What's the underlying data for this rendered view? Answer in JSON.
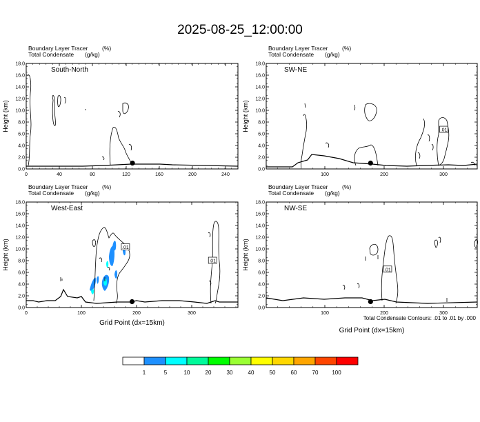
{
  "figure_title": "2025-08-25_12:00:00",
  "footnote": "Total Condensate Contours: .01 to .01 by .000",
  "chart_data": [
    {
      "type": "contour",
      "panel_label": "South-North",
      "header_left": [
        "Boundary Layer Tracer",
        "Total Condensate"
      ],
      "header_right": [
        "(%)",
        "(g/kg)"
      ],
      "ylabel": "Height (km)",
      "xlabel": "",
      "xlim": [
        0,
        253
      ],
      "ylim": [
        0,
        18
      ],
      "xticks": [
        "0",
        "40",
        "80",
        "120",
        "160",
        "200",
        "240"
      ],
      "yticks": [
        "0.0",
        "2.0",
        "4.0",
        "6.0",
        "8.0",
        "10.0",
        "12.0",
        "14.0",
        "16.0",
        "18.0"
      ],
      "marker": {
        "x": 127,
        "y": 1.0
      },
      "contour_labels": []
    },
    {
      "type": "contour",
      "panel_label": "SW-NE",
      "header_left": [
        "Boundary Layer Tracer",
        "Total Condensate"
      ],
      "header_right": [
        "(%)",
        "(g/kg)"
      ],
      "ylabel": "Height (km)",
      "xlabel": "",
      "xlim": [
        0,
        360
      ],
      "ylim": [
        0,
        18
      ],
      "xticks": [
        "100",
        "200",
        "300"
      ],
      "yticks": [
        "0.0",
        "2.0",
        "4.0",
        "6.0",
        "8.0",
        "10.0",
        "12.0",
        "14.0",
        "16.0",
        "18.0"
      ],
      "marker": {
        "x": 178,
        "y": 1.0
      },
      "contour_labels": [
        {
          "text": ".01",
          "x": 303,
          "y": 6.7
        }
      ]
    },
    {
      "type": "contour",
      "panel_label": "West-East",
      "header_left": [
        "Boundary Layer Tracer",
        "Total Condensate"
      ],
      "header_right": [
        "(%)",
        "(g/kg)"
      ],
      "ylabel": "Height (km)",
      "xlabel": "Grid Point (dx=15km)",
      "xlim": [
        0,
        384
      ],
      "ylim": [
        0,
        18
      ],
      "xticks": [
        "0",
        "100",
        "200",
        "300"
      ],
      "yticks": [
        "0.0",
        "2.0",
        "4.0",
        "6.0",
        "8.0",
        "10.0",
        "12.0",
        "14.0",
        "16.0",
        "18.0"
      ],
      "marker": {
        "x": 192,
        "y": 1.0
      },
      "contour_labels": [
        {
          "text": ".01",
          "x": 180,
          "y": 10.3
        },
        {
          "text": ".01",
          "x": 338,
          "y": 8.0
        }
      ]
    },
    {
      "type": "contour",
      "panel_label": "NW-SE",
      "header_left": [
        "Boundary Layer Tracer",
        "Total Condensate"
      ],
      "header_right": [
        "(%)",
        "(g/kg)"
      ],
      "ylabel": "Height (km)",
      "xlabel": "Grid Point (dx=15km)",
      "xlim": [
        0,
        360
      ],
      "ylim": [
        0,
        18
      ],
      "xticks": [
        "100",
        "200",
        "300"
      ],
      "yticks": [
        "0.0",
        "2.0",
        "4.0",
        "6.0",
        "8.0",
        "10.0",
        "12.0",
        "14.0",
        "16.0",
        "18.0"
      ],
      "marker": {
        "x": 178,
        "y": 1.0
      },
      "contour_labels": [
        {
          "text": ".01",
          "x": 207,
          "y": 6.5
        }
      ]
    }
  ],
  "colorbar": {
    "labels": [
      "1",
      "5",
      "10",
      "20",
      "30",
      "40",
      "50",
      "60",
      "70",
      "100"
    ],
    "colors": [
      "#ffffff",
      "#1e90ff",
      "#00ffff",
      "#00fa9a",
      "#00ff00",
      "#9aff33",
      "#ffff00",
      "#ffd700",
      "#ffa500",
      "#ff4500",
      "#ff0000"
    ]
  }
}
